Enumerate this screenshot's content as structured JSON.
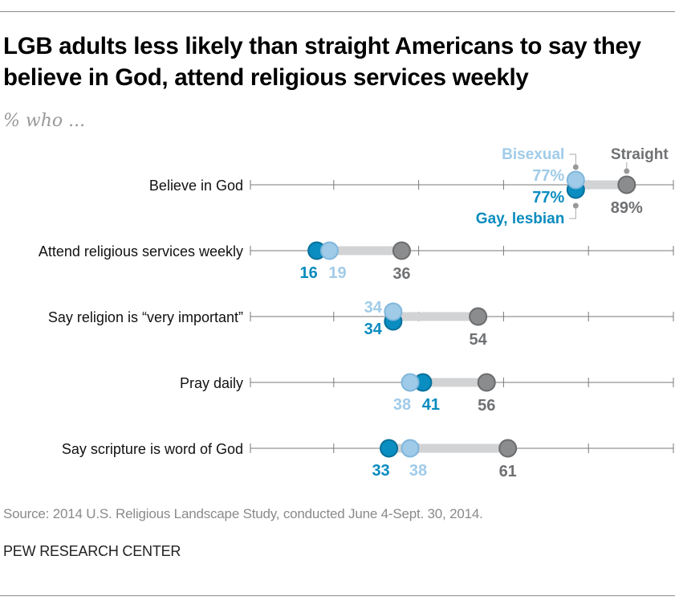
{
  "title": "LGB adults less likely than straight Americans to say they believe in God, attend religious services weekly",
  "subtitle": "% who ...",
  "source": "Source: 2014 U.S. Religious Landscape Study, conducted June 4-Sept. 30, 2014.",
  "credit": "PEW RESEARCH CENTER",
  "chart_data": {
    "type": "dot",
    "xlim": [
      0,
      100
    ],
    "grid": false,
    "categories": [
      "Believe in God",
      "Attend religious services weekly",
      "Say religion is “very important”",
      "Pray daily",
      "Say scripture is word of God"
    ],
    "series": [
      {
        "name": "Gay, lesbian",
        "color": "#0a8dc1",
        "label_color": "#0b8cbf",
        "values": [
          77,
          16,
          34,
          41,
          33
        ]
      },
      {
        "name": "Bisexual",
        "color": "#9fcbe8",
        "label_color": "#a0cbe8",
        "values": [
          77,
          19,
          34,
          38,
          38
        ]
      },
      {
        "name": "Straight",
        "color": "#8b8c8e",
        "label_color": "#707174",
        "values": [
          89,
          36,
          54,
          56,
          61
        ]
      }
    ],
    "range_bar_color": "#d2d3d5",
    "legend_placement": "annotated on first row"
  }
}
